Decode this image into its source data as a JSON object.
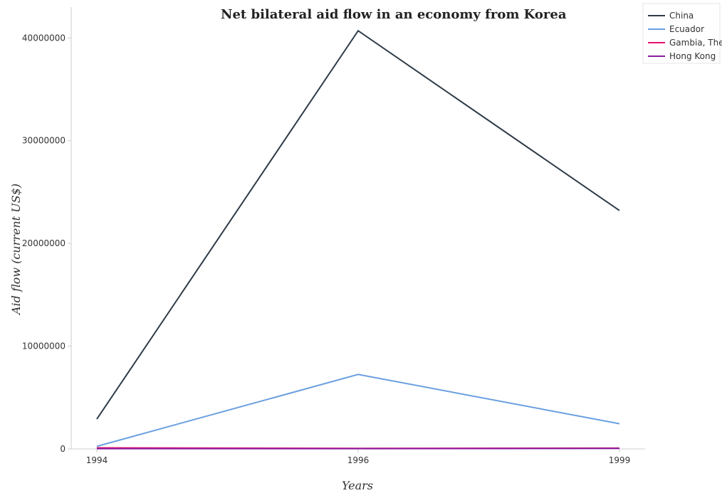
{
  "chart_data": {
    "type": "line",
    "title": "Net bilateral aid flow in an economy from Korea",
    "xlabel": "Years",
    "ylabel": "Aid flow (current US$)",
    "categories": [
      "1994",
      "1996",
      "1999"
    ],
    "ylim": [
      0,
      43000000
    ],
    "yticks": [
      0,
      10000000,
      20000000,
      30000000,
      40000000
    ],
    "ytick_labels": [
      "0",
      "10000000",
      "20000000",
      "30000000",
      "40000000"
    ],
    "grid": false,
    "legend_position": "top-right",
    "series": [
      {
        "name": "China",
        "color": "#2f3b47",
        "values": [
          2900000,
          40700000,
          23200000
        ]
      },
      {
        "name": "Ecuador",
        "color": "#6a9fe0",
        "values": [
          250000,
          7250000,
          2450000
        ]
      },
      {
        "name": "Gambia, The",
        "color": "#e8106e",
        "values": [
          100000,
          50000,
          80000
        ]
      },
      {
        "name": "Hong Kong",
        "color": "#8a1ba0",
        "values": [
          30000,
          30000,
          50000
        ]
      }
    ]
  }
}
